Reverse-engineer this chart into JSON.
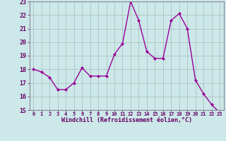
{
  "x": [
    0,
    1,
    2,
    3,
    4,
    5,
    6,
    7,
    8,
    9,
    10,
    11,
    12,
    13,
    14,
    15,
    16,
    17,
    18,
    19,
    20,
    21,
    22,
    23
  ],
  "y": [
    18.0,
    17.8,
    17.4,
    16.5,
    16.5,
    17.0,
    18.1,
    17.5,
    17.5,
    17.5,
    19.1,
    19.9,
    23.0,
    21.6,
    19.3,
    18.8,
    18.8,
    21.6,
    22.1,
    21.0,
    17.2,
    16.2,
    15.4,
    14.8
  ],
  "line_color": "#990099",
  "marker": "D",
  "marker_size": 2.0,
  "bg_color": "#cce8e8",
  "grid_color": "#aabbbb",
  "xlabel": "Windchill (Refroidissement éolien,°C)",
  "xlabel_color": "#660066",
  "tick_color": "#660066",
  "ylim": [
    15,
    23
  ],
  "xlim": [
    -0.5,
    23.5
  ],
  "yticks": [
    15,
    16,
    17,
    18,
    19,
    20,
    21,
    22,
    23
  ],
  "xticks": [
    0,
    1,
    2,
    3,
    4,
    5,
    6,
    7,
    8,
    9,
    10,
    11,
    12,
    13,
    14,
    15,
    16,
    17,
    18,
    19,
    20,
    21,
    22,
    23
  ],
  "line_width": 1.0
}
